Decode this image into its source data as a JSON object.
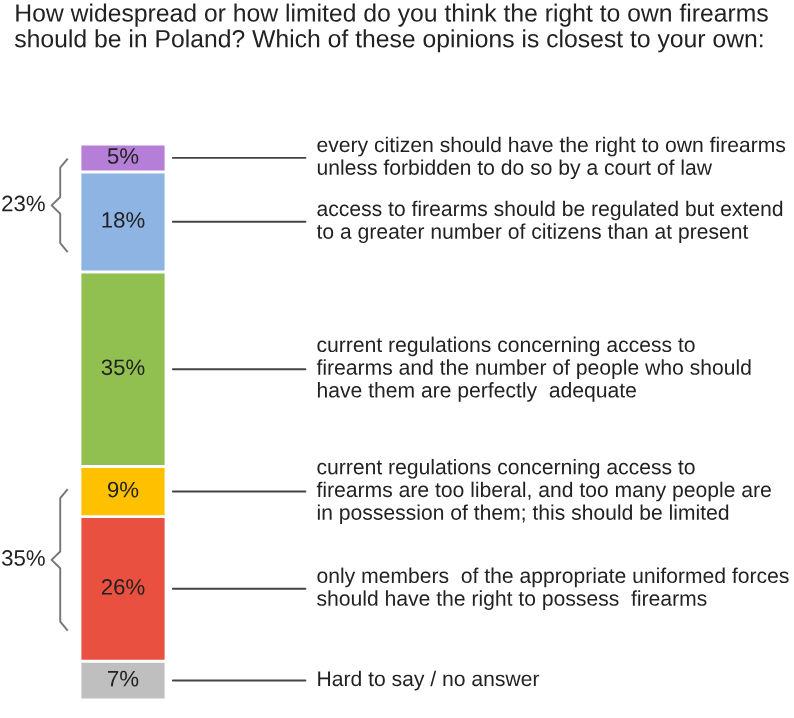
{
  "chart_data": {
    "type": "bar",
    "stacked": true,
    "title": "How widespread or how limited do you think the right to own firearms should be in Poland? Which of these opinions is closest to your own:",
    "categories": [
      null
    ],
    "series": [
      {
        "name": "Hard to say / no answer",
        "color": "#bfbfbf",
        "values": [
          7
        ],
        "value_labels": [
          "7%"
        ]
      },
      {
        "name": "only members  of the appropriate uniformed forces\nshould have the right to possess  firearms",
        "color": "#e9503f",
        "values": [
          26
        ],
        "value_labels": [
          "26%"
        ]
      },
      {
        "name": "current regulations concerning access to\nfirearms are too liberal, and too many people are\nin possession of them; this should be limited",
        "color": "#ffc000",
        "values": [
          9
        ],
        "value_labels": [
          "9%"
        ]
      },
      {
        "name": "current regulations concerning access to\nfirearms and the number of people who should\nhave them are perfectly  adequate",
        "color": "#92c050",
        "values": [
          35
        ],
        "value_labels": [
          "35%"
        ]
      },
      {
        "name": "access to firearms should be regulated but extend\nto a greater number of citizens than at present",
        "color": "#8db4e2",
        "values": [
          18
        ],
        "value_labels": [
          "18%"
        ]
      },
      {
        "name": "every citizen should have the right to own firearms\nunless forbidden to do so by a court of law",
        "color": "#b57fd8",
        "values": [
          5
        ],
        "value_labels": [
          "5%"
        ]
      }
    ],
    "annotations": [
      "23%",
      "35%"
    ],
    "legend": false
  }
}
